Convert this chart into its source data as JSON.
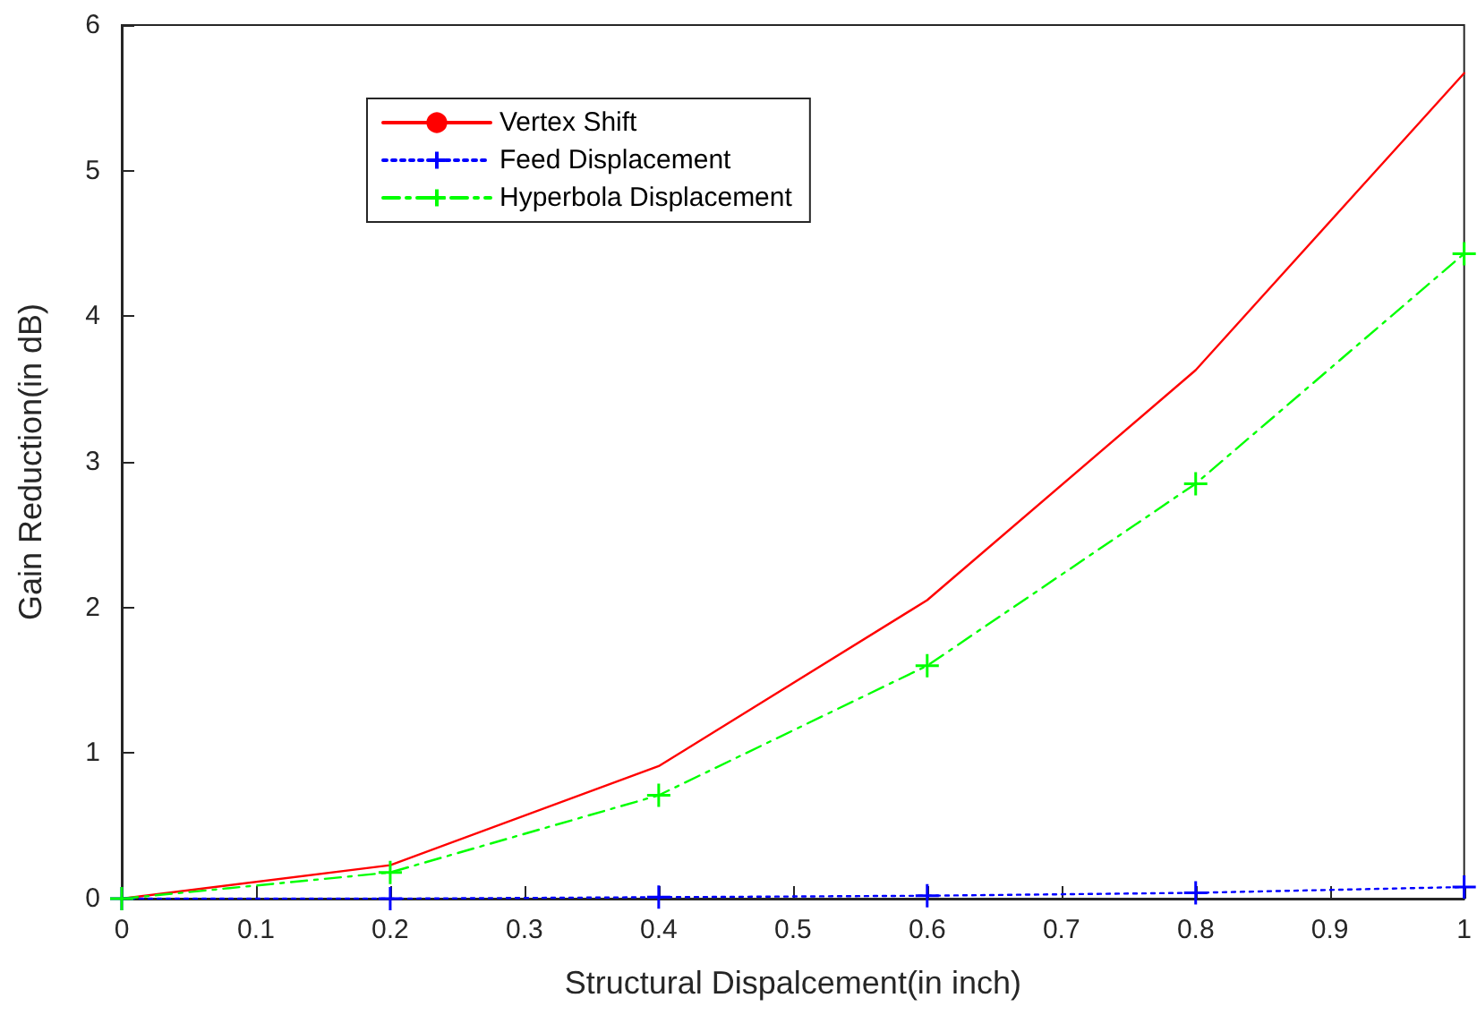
{
  "chart_data": {
    "type": "line",
    "xlabel": "Structural Dispalcement(in inch)",
    "ylabel": "Gain Reduction(in dB)",
    "x": [
      0,
      0.2,
      0.4,
      0.6,
      0.8,
      1
    ],
    "series": [
      {
        "name": "Vertex Shift",
        "color": "#ff0000",
        "marker": "none",
        "line_style": "solid",
        "values": [
          0,
          0.23,
          0.91,
          2.05,
          3.63,
          5.67
        ]
      },
      {
        "name": "Feed Displacement",
        "color": "#0000ff",
        "marker": "cross",
        "line_style": "dotted",
        "values": [
          0,
          0,
          0.01,
          0.02,
          0.04,
          0.08
        ]
      },
      {
        "name": "Hyperbola Displacement",
        "color": "#00ff00",
        "marker": "cross",
        "line_style": "dashdot",
        "values": [
          0,
          0.18,
          0.71,
          1.6,
          2.85,
          4.43
        ]
      }
    ],
    "xlim": [
      0,
      1
    ],
    "xticks": [
      0,
      0.1,
      0.2,
      0.3,
      0.4,
      0.5,
      0.6,
      0.7,
      0.8,
      0.9,
      1
    ],
    "ylim": [
      0,
      6
    ],
    "yticks": [
      0,
      1,
      2,
      3,
      4,
      5,
      6
    ],
    "grid": false,
    "legend": "top left"
  }
}
